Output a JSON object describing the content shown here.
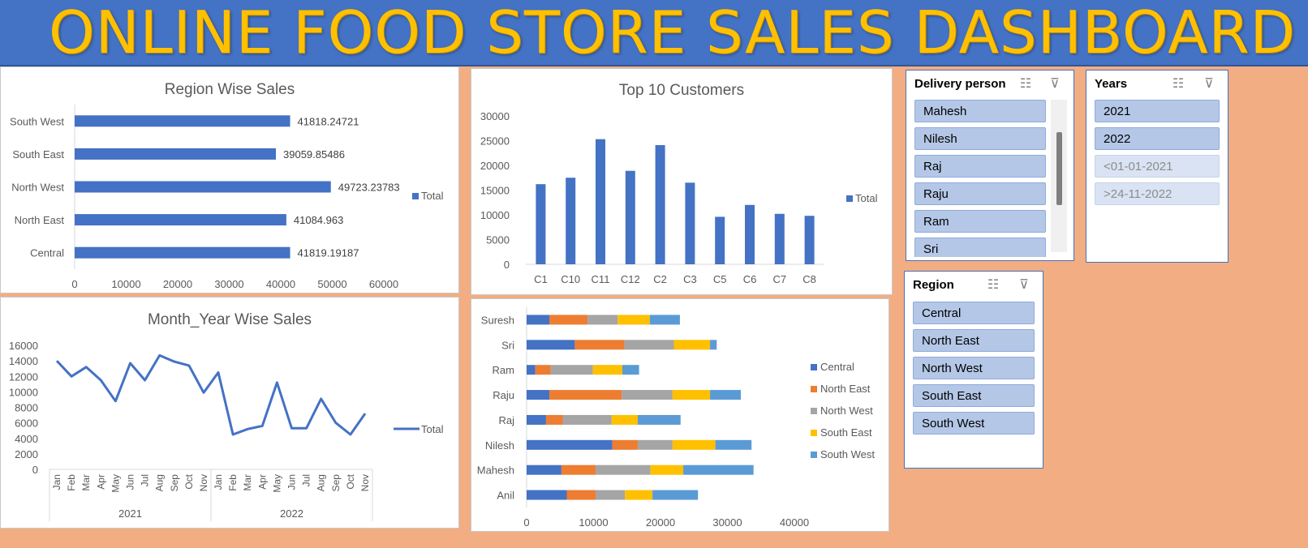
{
  "header": {
    "title": "ONLINE FOOD STORE SALES DASHBOARD"
  },
  "chart_data": [
    {
      "type": "bar",
      "orientation": "horizontal",
      "title": "Region Wise Sales",
      "categories": [
        "Central",
        "North East",
        "North West",
        "South East",
        "South West"
      ],
      "series": [
        {
          "name": "Total",
          "values": [
            41819.19187,
            41084.963,
            49723.23783,
            39059.85486,
            41818.24721
          ],
          "labels": [
            "41819.19187",
            "41084.963",
            "49723.23783",
            "39059.85486",
            "41818.24721"
          ]
        }
      ],
      "xlim": [
        0,
        60000
      ],
      "xticks": [
        "0",
        "10000",
        "20000",
        "30000",
        "40000",
        "50000",
        "60000"
      ],
      "legend": "right",
      "color": "#4472c4"
    },
    {
      "type": "bar",
      "title": "Top 10 Customers",
      "categories": [
        "C1",
        "C10",
        "C11",
        "C12",
        "C2",
        "C3",
        "C5",
        "C6",
        "C7",
        "C8"
      ],
      "series": [
        {
          "name": "Total",
          "values": [
            16200,
            17500,
            25300,
            18900,
            24100,
            16500,
            9600,
            12000,
            10200,
            9800
          ]
        }
      ],
      "ylim": [
        0,
        30000
      ],
      "yticks": [
        "0",
        "5000",
        "10000",
        "15000",
        "20000",
        "25000",
        "30000"
      ],
      "legend": "right",
      "color": "#4472c4"
    },
    {
      "type": "line",
      "title": "Month_Year Wise Sales",
      "years": [
        {
          "label": "2021",
          "months": [
            "Jan",
            "Feb",
            "Mar",
            "Apr",
            "May",
            "Jun",
            "Jul",
            "Aug",
            "Sep",
            "Oct",
            "Nov"
          ]
        },
        {
          "label": "2022",
          "months": [
            "Jan",
            "Feb",
            "Mar",
            "Apr",
            "May",
            "Jun",
            "Jul",
            "Aug",
            "Sep",
            "Oct",
            "Nov"
          ]
        }
      ],
      "series": [
        {
          "name": "Total",
          "values": [
            14000,
            12000,
            13200,
            11500,
            8800,
            13700,
            11500,
            14700,
            13900,
            13400,
            9900,
            12500,
            4500,
            5200,
            5600,
            11200,
            5300,
            5300,
            9100,
            6000,
            4500,
            7200
          ]
        }
      ],
      "ylim": [
        0,
        16000
      ],
      "yticks": [
        "0",
        "2000",
        "4000",
        "6000",
        "8000",
        "10000",
        "12000",
        "14000",
        "16000"
      ],
      "legend": "right",
      "color": "#4472c4"
    },
    {
      "type": "bar",
      "orientation": "horizontal",
      "stacked": true,
      "categories": [
        "Anil",
        "Mahesh",
        "Nilesh",
        "Raj",
        "Raju",
        "Ram",
        "Sri",
        "Suresh"
      ],
      "series": [
        {
          "name": "Central",
          "color": "#4472c4",
          "values": [
            6000,
            5200,
            12800,
            2900,
            3400,
            1300,
            7200,
            3400
          ]
        },
        {
          "name": "North East",
          "color": "#ed7d31",
          "values": [
            4300,
            5100,
            3800,
            2500,
            10800,
            2300,
            7400,
            5700
          ]
        },
        {
          "name": "North West",
          "color": "#a5a5a5",
          "values": [
            4400,
            8200,
            5200,
            7300,
            7600,
            6300,
            7400,
            4500
          ]
        },
        {
          "name": "South East",
          "color": "#ffc000",
          "values": [
            4100,
            4900,
            6400,
            3900,
            5600,
            4400,
            5400,
            4800
          ]
        },
        {
          "name": "South West",
          "color": "#5b9bd5",
          "values": [
            6800,
            10500,
            5400,
            6400,
            4600,
            2500,
            1000,
            4500
          ]
        }
      ],
      "xlim": [
        0,
        40000
      ],
      "xticks": [
        "0",
        "10000",
        "20000",
        "30000",
        "40000"
      ],
      "legend": "right"
    }
  ],
  "slicers": {
    "delivery": {
      "title": "Delivery person",
      "items": [
        "Mahesh",
        "Nilesh",
        "Raj",
        "Raju",
        "Ram",
        "Sri"
      ]
    },
    "years": {
      "title": "Years",
      "items": [
        "2021",
        "2022"
      ],
      "dim_items": [
        "<01-01-2021",
        ">24-11-2022"
      ]
    },
    "region": {
      "title": "Region",
      "items": [
        "Central",
        "North East",
        "North West",
        "South East",
        "South West"
      ]
    }
  },
  "icons": {
    "multi_select": "multi-select-icon",
    "clear_filter": "clear-filter-icon"
  }
}
